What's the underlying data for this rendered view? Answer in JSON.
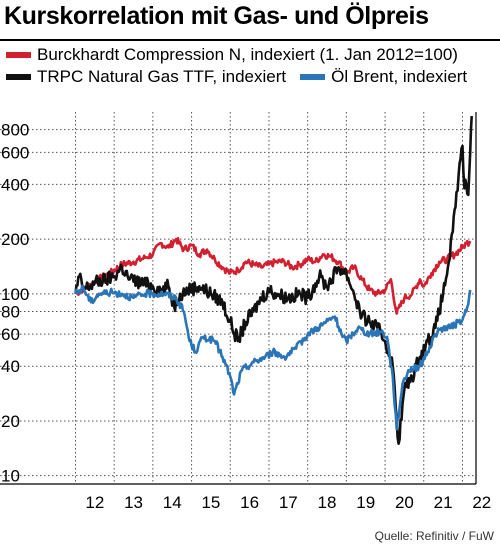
{
  "title": "Kurskorrelation mit Gas- und Ölpreis",
  "source": "Quelle: Refinitiv / FuW",
  "legend": {
    "burckhardt": "Burckhardt Compression N, indexiert (1. Jan 2012=100)",
    "gas": "TRPC Natural Gas TTF, indexiert",
    "oil": "Öl Brent, indexiert"
  },
  "colors": {
    "burckhardt": "#d22030",
    "gas": "#111111",
    "oil": "#2a74b8"
  },
  "chart_data": {
    "type": "line",
    "yscale": "log",
    "ylim": [
      9,
      1000
    ],
    "yticks": [
      10,
      20,
      40,
      60,
      80,
      100,
      200,
      400,
      600,
      800
    ],
    "xlim": [
      2011.6,
      2022.35
    ],
    "xticks": [
      "12",
      "13",
      "14",
      "15",
      "16",
      "17",
      "18",
      "19",
      "20",
      "21",
      "22"
    ],
    "series": [
      {
        "name": "Burckhardt Compression N, indexiert (1. Jan 2012=100)",
        "x": [
          2012.0,
          2012.3,
          2012.6,
          2012.9,
          2013.2,
          2013.5,
          2013.8,
          2014.0,
          2014.2,
          2014.4,
          2014.6,
          2014.8,
          2015.0,
          2015.2,
          2015.4,
          2015.6,
          2015.8,
          2016.0,
          2016.2,
          2016.4,
          2016.6,
          2016.8,
          2017.0,
          2017.2,
          2017.4,
          2017.6,
          2017.8,
          2018.0,
          2018.2,
          2018.4,
          2018.6,
          2018.8,
          2019.0,
          2019.2,
          2019.4,
          2019.6,
          2019.8,
          2020.0,
          2020.15,
          2020.3,
          2020.5,
          2020.7,
          2020.9,
          2021.0,
          2021.2,
          2021.4,
          2021.6,
          2021.8,
          2022.0,
          2022.1,
          2022.2
        ],
        "values": [
          100,
          110,
          120,
          130,
          145,
          150,
          158,
          165,
          190,
          180,
          200,
          175,
          185,
          165,
          175,
          155,
          140,
          130,
          135,
          150,
          145,
          140,
          145,
          150,
          150,
          140,
          145,
          155,
          150,
          165,
          160,
          150,
          130,
          140,
          120,
          105,
          100,
          105,
          120,
          78,
          95,
          100,
          120,
          110,
          130,
          150,
          155,
          165,
          180,
          190,
          195
        ]
      },
      {
        "name": "TRPC Natural Gas TTF, indexiert",
        "x": [
          2012.0,
          2012.1,
          2012.2,
          2012.5,
          2012.8,
          2013.0,
          2013.2,
          2013.4,
          2013.7,
          2014.0,
          2014.2,
          2014.4,
          2014.55,
          2014.7,
          2014.9,
          2015.2,
          2015.5,
          2015.8,
          2016.0,
          2016.2,
          2016.4,
          2016.6,
          2016.8,
          2017.0,
          2017.2,
          2017.5,
          2017.8,
          2018.0,
          2018.3,
          2018.5,
          2018.8,
          2019.0,
          2019.2,
          2019.4,
          2019.6,
          2019.8,
          2020.0,
          2020.2,
          2020.35,
          2020.5,
          2020.7,
          2020.9,
          2021.1,
          2021.3,
          2021.5,
          2021.65,
          2021.75,
          2021.82,
          2021.9,
          2021.95,
          2022.0,
          2022.05,
          2022.1,
          2022.15,
          2022.2,
          2022.24
        ],
        "values": [
          100,
          125,
          105,
          115,
          120,
          125,
          140,
          120,
          115,
          110,
          105,
          110,
          85,
          100,
          105,
          110,
          100,
          90,
          70,
          55,
          70,
          80,
          95,
          105,
          100,
          95,
          100,
          95,
          125,
          110,
          140,
          130,
          100,
          75,
          70,
          65,
          55,
          40,
          15,
          30,
          35,
          45,
          55,
          65,
          100,
          150,
          220,
          300,
          450,
          550,
          650,
          380,
          400,
          350,
          600,
          950
        ]
      },
      {
        "name": "Öl Brent, indexiert",
        "x": [
          2012.0,
          2012.2,
          2012.4,
          2012.6,
          2012.9,
          2013.2,
          2013.5,
          2013.8,
          2014.0,
          2014.3,
          2014.6,
          2014.8,
          2014.95,
          2015.1,
          2015.3,
          2015.6,
          2015.8,
          2016.0,
          2016.1,
          2016.3,
          2016.6,
          2016.9,
          2017.1,
          2017.4,
          2017.7,
          2018.0,
          2018.4,
          2018.7,
          2018.9,
          2019.0,
          2019.3,
          2019.6,
          2019.9,
          2020.05,
          2020.2,
          2020.3,
          2020.45,
          2020.6,
          2020.9,
          2021.1,
          2021.3,
          2021.5,
          2021.7,
          2021.9,
          2022.0,
          2022.1,
          2022.2
        ],
        "values": [
          100,
          108,
          90,
          100,
          102,
          100,
          95,
          100,
          100,
          100,
          95,
          80,
          55,
          48,
          58,
          55,
          45,
          35,
          28,
          38,
          42,
          45,
          48,
          45,
          50,
          60,
          68,
          75,
          58,
          55,
          65,
          60,
          62,
          58,
          35,
          18,
          32,
          38,
          40,
          48,
          60,
          65,
          65,
          70,
          72,
          80,
          105
        ]
      }
    ]
  }
}
